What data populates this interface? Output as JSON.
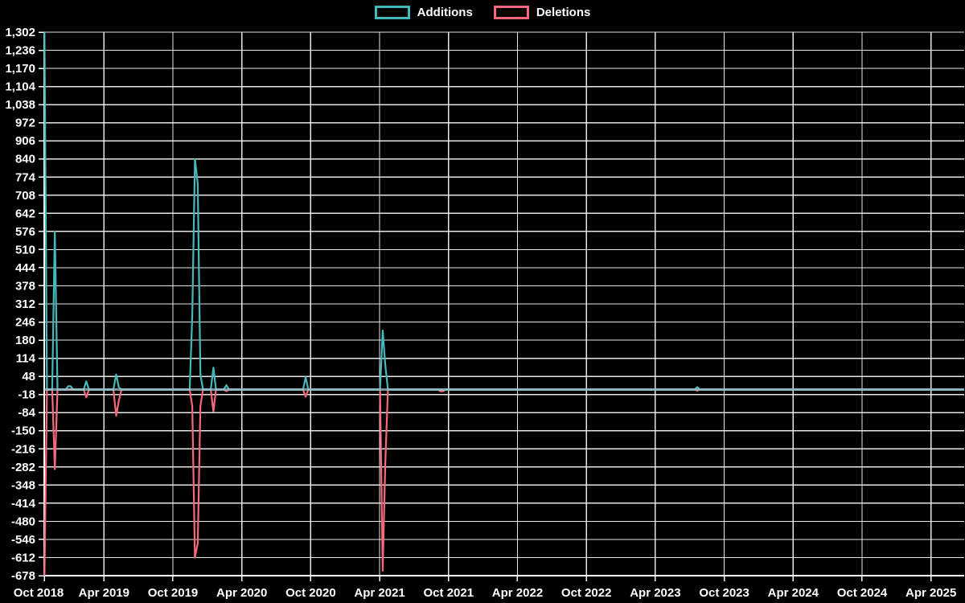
{
  "legend": {
    "items": [
      {
        "label": "Additions",
        "color": "#44b9bd"
      },
      {
        "label": "Deletions",
        "color": "#f5697b"
      }
    ]
  },
  "chart_data": {
    "type": "line",
    "title": "",
    "background": "#000000",
    "grid": true,
    "legend_position": "top-center",
    "text_color": "#ffffff",
    "gridline_color": "#ffffff",
    "zero_line_color": "#a5c2cc",
    "x_axis": {
      "tick_labels": [
        "Oct 2018",
        "Apr 2019",
        "Oct 2019",
        "Apr 2020",
        "Oct 2020",
        "Apr 2021",
        "Oct 2021",
        "Apr 2022",
        "Oct 2022",
        "Apr 2023",
        "Oct 2023",
        "Apr 2024",
        "Oct 2024",
        "Apr 2025"
      ]
    },
    "y_axis": {
      "min": -678,
      "max": 1302,
      "step": 66
    },
    "x": [
      "2018-10-26",
      "2018-11-02",
      "2018-11-16",
      "2018-11-23",
      "2018-11-30",
      "2018-12-21",
      "2018-12-28",
      "2019-01-04",
      "2019-01-11",
      "2019-02-08",
      "2019-02-15",
      "2019-02-22",
      "2019-04-26",
      "2019-05-03",
      "2019-05-10",
      "2019-05-17",
      "2019-11-15",
      "2019-11-22",
      "2019-11-29",
      "2019-12-06",
      "2019-12-13",
      "2019-12-20",
      "2020-01-10",
      "2020-01-17",
      "2020-01-24",
      "2020-02-14",
      "2020-02-21",
      "2020-02-28",
      "2020-09-11",
      "2020-09-18",
      "2020-09-25",
      "2021-04-02",
      "2021-04-09",
      "2021-04-16",
      "2021-04-23",
      "2021-09-03",
      "2021-09-10",
      "2021-09-17",
      "2021-09-24",
      "2023-07-14",
      "2023-07-21",
      "2023-07-28",
      "2025-06-27"
    ],
    "series": [
      {
        "name": "Additions",
        "color": "#44b9bd",
        "values": [
          1302,
          0,
          0,
          576,
          0,
          0,
          12,
          12,
          0,
          0,
          30,
          0,
          0,
          55,
          8,
          0,
          0,
          270,
          840,
          750,
          55,
          0,
          0,
          80,
          0,
          0,
          16,
          0,
          0,
          45,
          0,
          0,
          215,
          90,
          0,
          0,
          0,
          0,
          0,
          0,
          9,
          0,
          0
        ]
      },
      {
        "name": "Deletions",
        "color": "#f5697b",
        "values": [
          -678,
          0,
          0,
          -290,
          0,
          0,
          0,
          0,
          0,
          0,
          -28,
          0,
          0,
          -95,
          -40,
          0,
          0,
          -60,
          -612,
          -560,
          -60,
          0,
          0,
          -80,
          0,
          0,
          -6,
          0,
          0,
          -26,
          0,
          0,
          -660,
          -270,
          0,
          0,
          -6,
          -6,
          0,
          0,
          -4,
          0,
          0
        ]
      }
    ]
  }
}
